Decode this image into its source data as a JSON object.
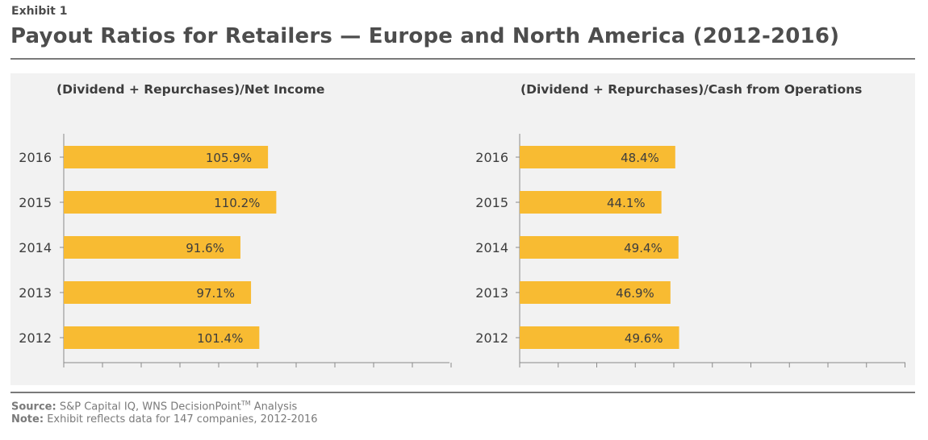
{
  "header": {
    "exhibit": "Exhibit 1",
    "title": "Payout Ratios for Retailers — Europe and North America (2012-2016)"
  },
  "colors": {
    "bar": "#F8BB32",
    "axis": "#8a8a8a",
    "panel": "#f2f2f2"
  },
  "chart_data": [
    {
      "type": "bar",
      "orientation": "horizontal",
      "title": "(Dividend + Repurchases)/Net Income",
      "categories": [
        "2016",
        "2015",
        "2014",
        "2013",
        "2012"
      ],
      "values": [
        105.9,
        110.2,
        91.6,
        97.1,
        101.4
      ],
      "labels": [
        "105.9%",
        "110.2%",
        "91.6%",
        "97.1%",
        "101.4%"
      ],
      "xlim": [
        0,
        200
      ],
      "grid": false
    },
    {
      "type": "bar",
      "orientation": "horizontal",
      "title": "(Dividend + Repurchases)/Cash from Operations",
      "categories": [
        "2016",
        "2015",
        "2014",
        "2013",
        "2012"
      ],
      "values": [
        48.4,
        44.1,
        49.4,
        46.9,
        49.6
      ],
      "labels": [
        "48.4%",
        "44.1%",
        "49.4%",
        "46.9%",
        "49.6%"
      ],
      "xlim": [
        0,
        120
      ],
      "grid": false
    }
  ],
  "footer": {
    "source_label": "Source:",
    "source_text": "S&P Capital IQ, WNS DecisionPoint",
    "source_tm": "TM",
    "source_tail": "Analysis",
    "note_label": "Note:",
    "note_text": "Exhibit reflects data for 147 companies, 2012-2016"
  }
}
